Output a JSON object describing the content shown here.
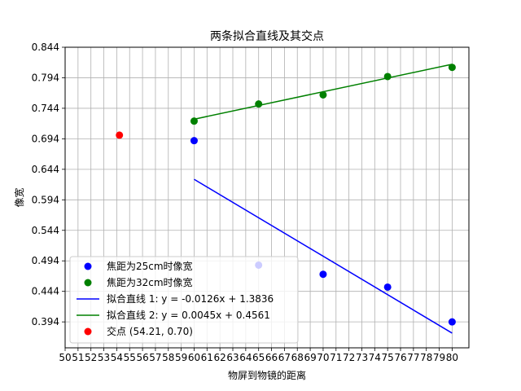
{
  "chart_data": {
    "type": "scatter",
    "title": "两条拟合直线及其交点",
    "xlabel": "物屏到物镜的距离",
    "ylabel": "像宽",
    "xlim": [
      50,
      81.3
    ],
    "ylim": [
      0.3515,
      0.844
    ],
    "x_ticks": [
      50,
      51,
      52,
      53,
      54,
      55,
      56,
      57,
      58,
      59,
      60,
      61,
      62,
      63,
      64,
      65,
      66,
      67,
      68,
      69,
      70,
      71,
      72,
      73,
      74,
      75,
      76,
      77,
      78,
      79,
      80
    ],
    "y_ticks": [
      0.394,
      0.444,
      0.494,
      0.544,
      0.594,
      0.644,
      0.694,
      0.744,
      0.794,
      0.844
    ],
    "grid": true,
    "legend_placement": "lower-left",
    "series": [
      {
        "name": "焦距为25cm时像宽",
        "kind": "scatter",
        "color": "#0000ff",
        "points": [
          [
            60,
            0.691
          ],
          [
            65,
            0.487
          ],
          [
            70,
            0.472
          ],
          [
            75,
            0.451
          ],
          [
            80,
            0.394
          ]
        ]
      },
      {
        "name": "焦距为32cm时像宽",
        "kind": "scatter",
        "color": "#008000",
        "points": [
          [
            60,
            0.723
          ],
          [
            65,
            0.751
          ],
          [
            70,
            0.766
          ],
          [
            75,
            0.796
          ],
          [
            80,
            0.811
          ]
        ]
      },
      {
        "name": "拟合直线 1: y = -0.0126x + 1.3836",
        "kind": "line",
        "color": "#0000ff",
        "points": [
          [
            60,
            0.6276
          ],
          [
            80,
            0.3756
          ]
        ]
      },
      {
        "name": "拟合直线 2: y = 0.0045x + 0.4561",
        "kind": "line",
        "color": "#008000",
        "points": [
          [
            60,
            0.7261
          ],
          [
            80,
            0.8161
          ]
        ]
      },
      {
        "name": "交点 (54.21, 0.70)",
        "kind": "scatter",
        "color": "#ff0000",
        "points": [
          [
            54.21,
            0.7
          ]
        ]
      }
    ]
  }
}
